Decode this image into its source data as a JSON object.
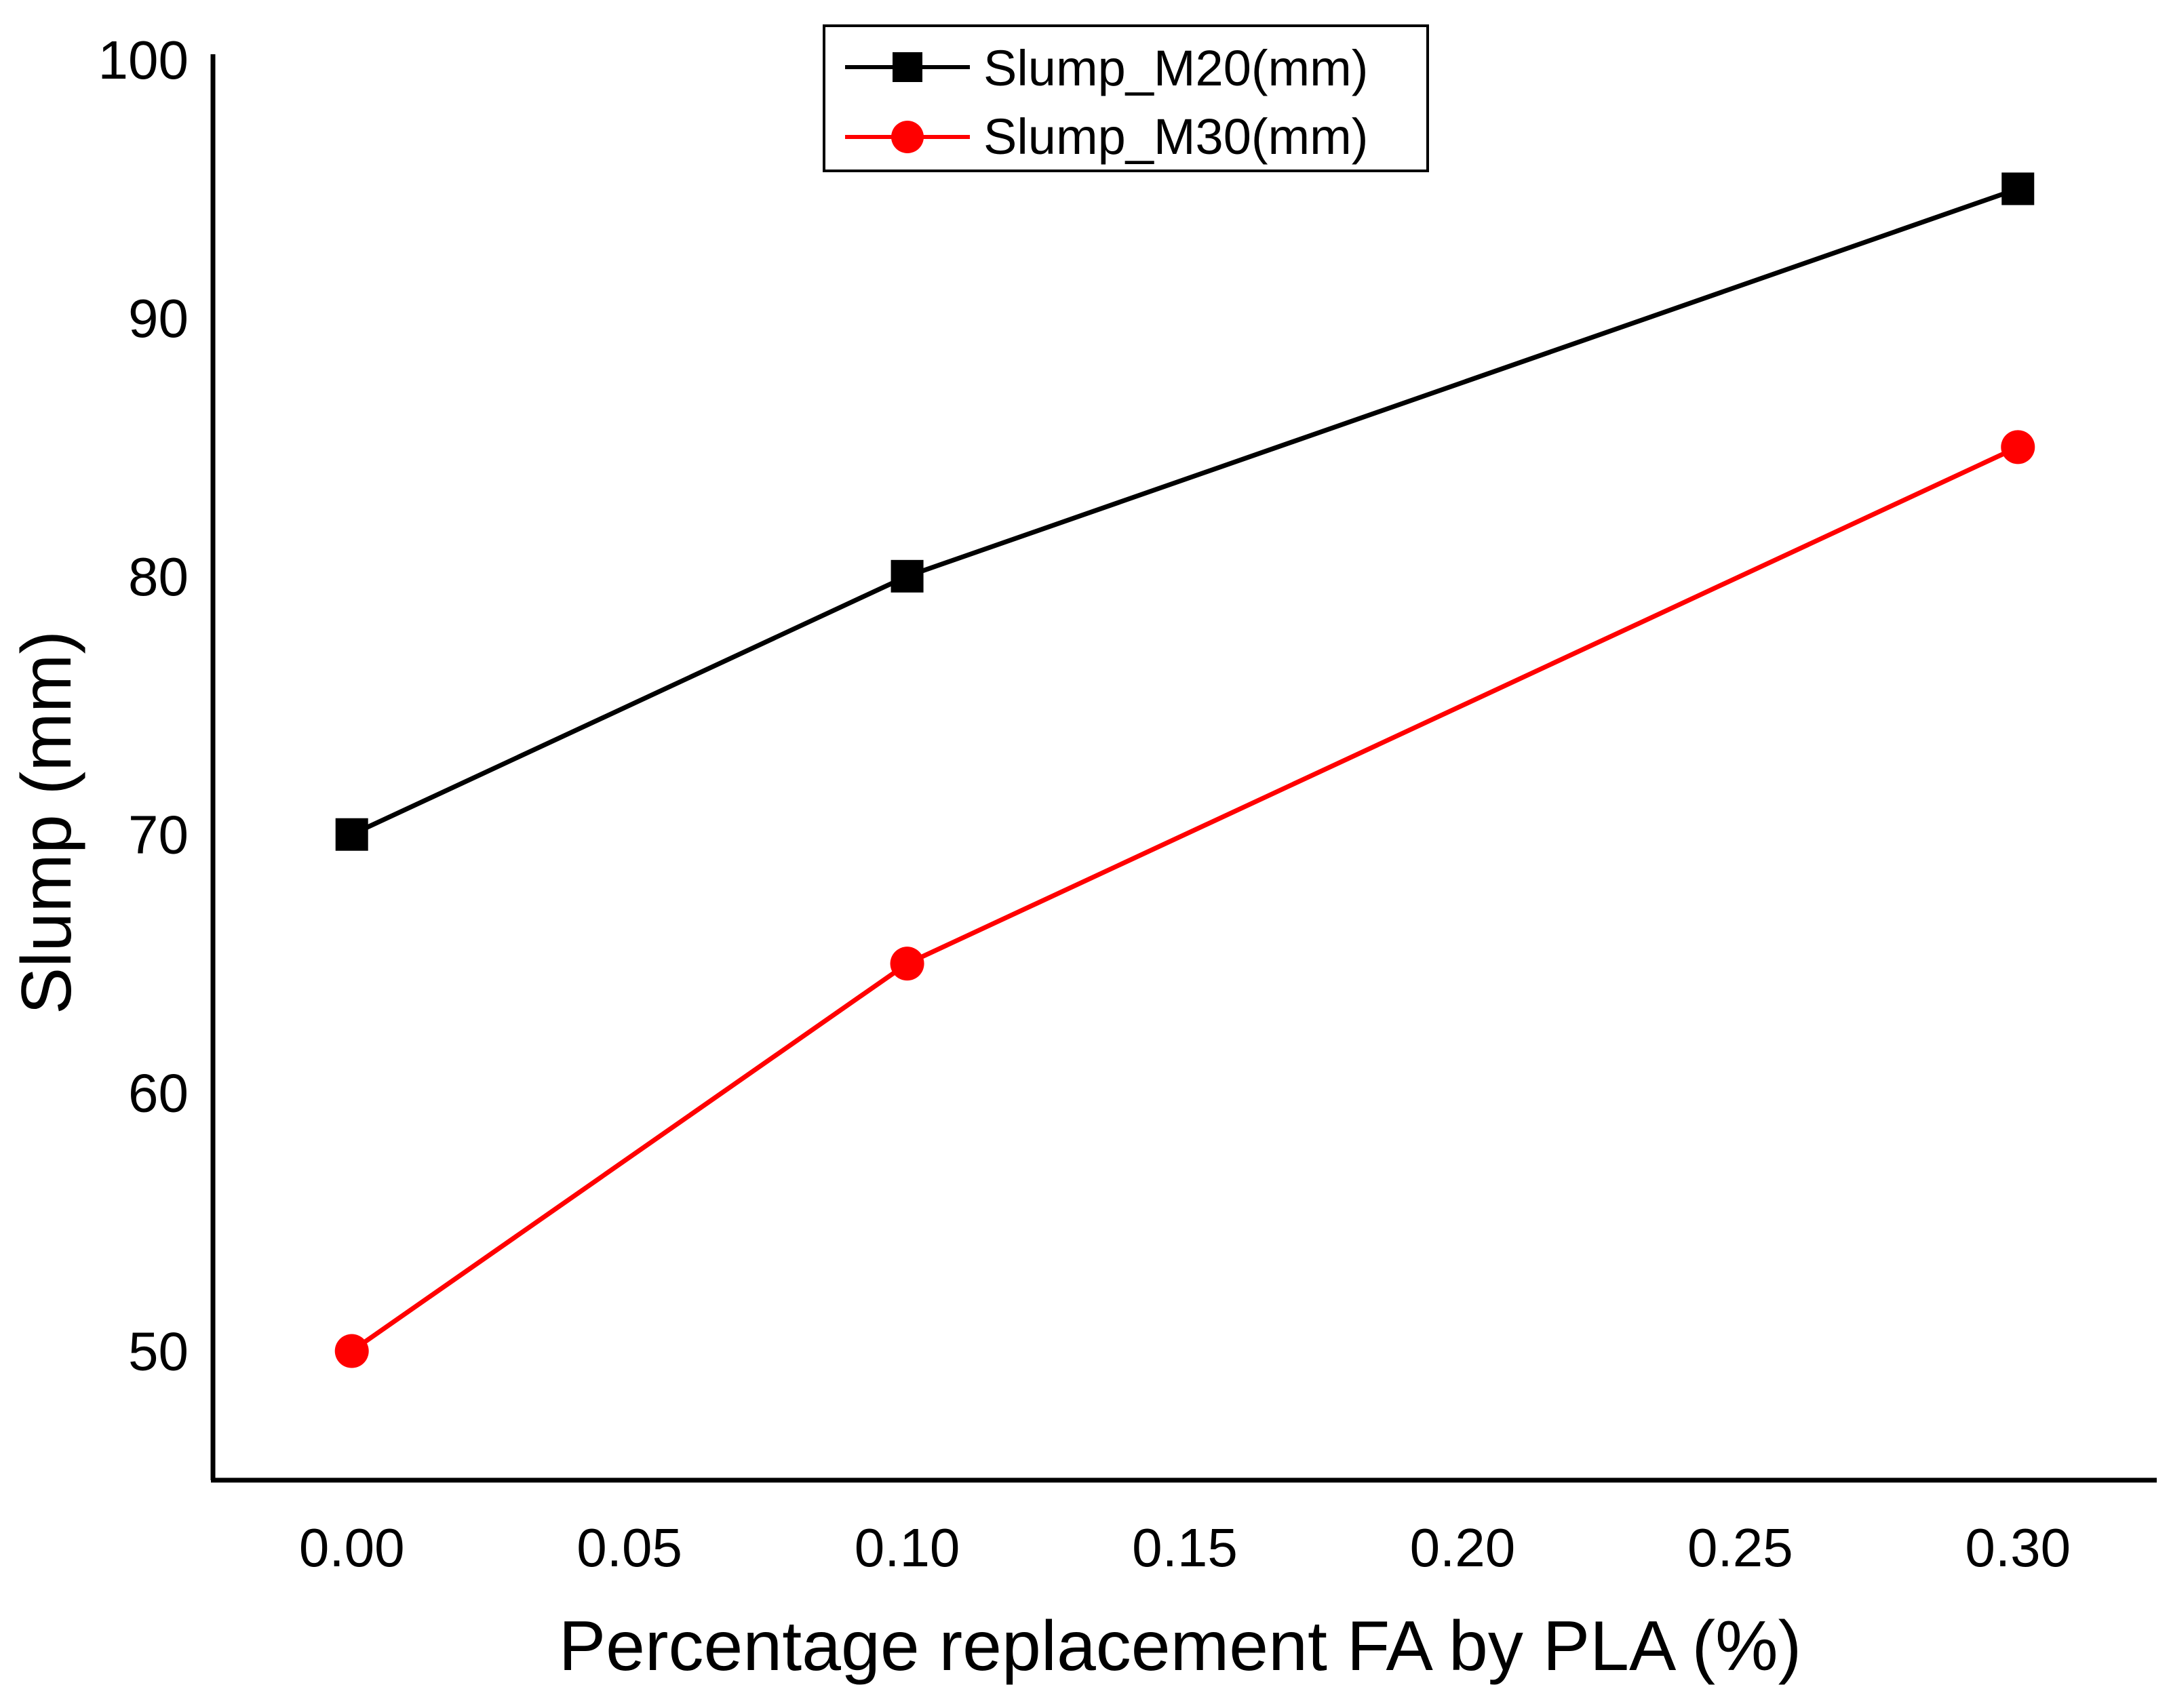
{
  "chart_data": {
    "type": "line",
    "title": "",
    "xlabel": "Percentage replacement FA by PLA (%)",
    "ylabel": "Slump (mm)",
    "xlim": [
      -0.025,
      0.325
    ],
    "ylim": [
      45,
      100
    ],
    "xticks": [
      0.0,
      0.05,
      0.1,
      0.15,
      0.2,
      0.25,
      0.3
    ],
    "xtick_labels": [
      "0.00",
      "0.05",
      "0.10",
      "0.15",
      "0.20",
      "0.25",
      "0.30"
    ],
    "yticks": [
      50,
      60,
      70,
      80,
      90,
      100
    ],
    "ytick_labels": [
      "50",
      "60",
      "70",
      "80",
      "90",
      "100"
    ],
    "grid": false,
    "legend_position": "top-center",
    "series": [
      {
        "name": "Slump_M20(mm)",
        "x": [
          0.0,
          0.1,
          0.3
        ],
        "values": [
          70,
          80,
          95
        ],
        "color": "#000000",
        "marker": "square"
      },
      {
        "name": "Slump_M30(mm)",
        "x": [
          0.0,
          0.1,
          0.3
        ],
        "values": [
          50,
          65,
          85
        ],
        "color": "#ff0000",
        "marker": "circle"
      }
    ]
  }
}
